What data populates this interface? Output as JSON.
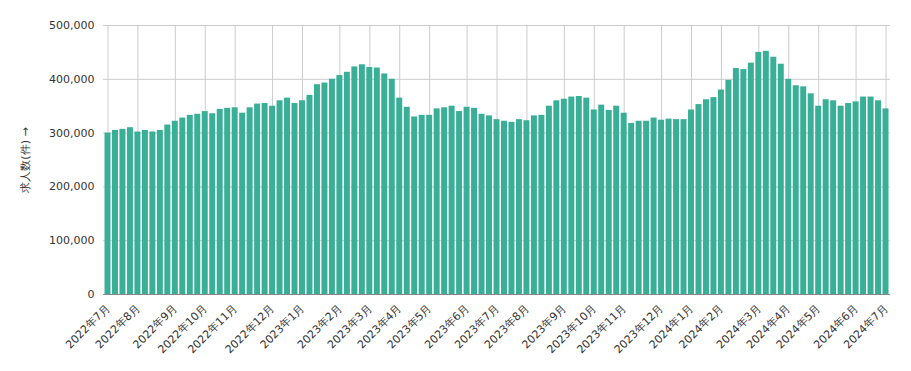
{
  "chart_data": {
    "type": "bar",
    "y_label": "求人数(件)",
    "color": "#3aaf97",
    "grid": true,
    "ylim": [
      0,
      500000
    ],
    "yticks": [
      {
        "value": 0,
        "label": "0"
      },
      {
        "value": 100000,
        "label": "100,000"
      },
      {
        "value": 200000,
        "label": "200,000"
      },
      {
        "value": 300000,
        "label": "300,000"
      },
      {
        "value": 400000,
        "label": "400,000"
      },
      {
        "value": 500000,
        "label": "500,000"
      }
    ],
    "categories": [
      "2022年7月",
      null,
      null,
      null,
      "2022年8月",
      null,
      null,
      null,
      null,
      "2022年9月",
      null,
      null,
      null,
      "2022年10月",
      null,
      null,
      null,
      "2022年11月",
      null,
      null,
      null,
      null,
      "2022年12月",
      null,
      null,
      null,
      "2023年1月",
      null,
      null,
      null,
      null,
      "2023年2月",
      null,
      null,
      null,
      "2023年3月",
      null,
      null,
      null,
      "2023年4月",
      null,
      null,
      null,
      "2023年5月",
      null,
      null,
      null,
      null,
      "2023年6月",
      null,
      null,
      null,
      "2023年7月",
      null,
      null,
      null,
      "2023年8月",
      null,
      null,
      null,
      null,
      "2023年9月",
      null,
      null,
      null,
      "2023年10月",
      null,
      null,
      null,
      "2023年11月",
      null,
      null,
      null,
      null,
      "2023年12月",
      null,
      null,
      null,
      "2024年1月",
      null,
      null,
      null,
      "2024年2月",
      null,
      null,
      null,
      null,
      "2024年3月",
      null,
      null,
      null,
      "2024年4月",
      null,
      null,
      null,
      "2024年5月",
      null,
      null,
      null,
      null,
      "2024年6月",
      null,
      null,
      null,
      "2024年7月"
    ],
    "values": [
      300000,
      305000,
      307000,
      310000,
      302000,
      305000,
      302000,
      305000,
      315000,
      322000,
      328000,
      333000,
      335000,
      340000,
      336000,
      344000,
      346000,
      347000,
      337000,
      347000,
      354000,
      355000,
      350000,
      360000,
      365000,
      355000,
      360000,
      370000,
      390000,
      393000,
      400000,
      407000,
      413000,
      423000,
      427000,
      422000,
      421000,
      410000,
      400000,
      365000,
      348000,
      330000,
      333000,
      333000,
      345000,
      347000,
      350000,
      340000,
      348000,
      346000,
      335000,
      332000,
      325000,
      322000,
      320000,
      325000,
      323000,
      332000,
      333000,
      350000,
      360000,
      363000,
      367000,
      368000,
      365000,
      343000,
      352000,
      342000,
      350000,
      337000,
      318000,
      322000,
      322000,
      328000,
      324000,
      326000,
      325000,
      325000,
      343000,
      353000,
      362000,
      366000,
      380000,
      398000,
      420000,
      418000,
      430000,
      450000,
      452000,
      441000,
      428000,
      400000,
      388000,
      386000,
      373000,
      350000,
      362000,
      360000,
      350000,
      355000,
      358000,
      367000,
      367000,
      360000,
      345000
    ]
  }
}
